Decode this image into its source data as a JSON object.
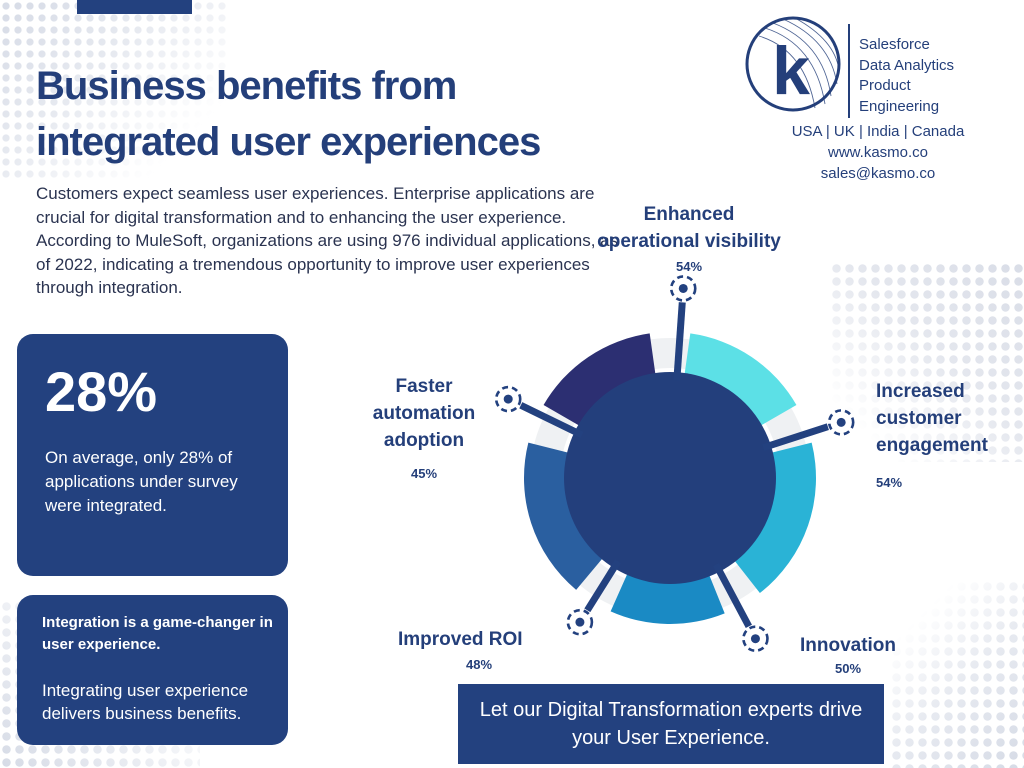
{
  "header": {
    "title_line1": "Business benefits from",
    "title_line2": "integrated user experiences",
    "intro": "Customers expect seamless user experiences. Enterprise applications are crucial for digital transformation and to enhancing the user experience. According to MuleSoft, organizations are using 976 individual applications, as of 2022, indicating a tremendous opportunity to improve user experiences through integration."
  },
  "brand": {
    "logo_letter": "k",
    "services": [
      "Salesforce",
      "Data Analytics",
      "Product",
      "Engineering"
    ],
    "regions": "USA | UK | India | Canada",
    "website": "www.kasmo.co",
    "email": "sales@kasmo.co"
  },
  "stat_card": {
    "value": "28%",
    "description": "On average, only 28% of applications under survey were integrated."
  },
  "insight_card": {
    "headline": "Integration is a game-changer in user experience.",
    "body": "Integrating user experience delivers business benefits."
  },
  "benefits": [
    {
      "name": "Enhanced operational visibility",
      "line1": "Enhanced",
      "line2": "operational visibility",
      "percent": "54%",
      "color": "#5ce0e6"
    },
    {
      "name": "Increased customer engagement",
      "line1": "Increased",
      "line2": "customer",
      "line3": "engagement",
      "percent": "54%",
      "color": "#2ab3d6"
    },
    {
      "name": "Innovation",
      "line1": "Innovation",
      "percent": "50%",
      "color": "#1a8ac4"
    },
    {
      "name": "Improved ROI",
      "line1": "Improved ROI",
      "percent": "48%",
      "color": "#2a5fa0"
    },
    {
      "name": "Faster automation adoption",
      "line1": "Faster",
      "line2": "automation",
      "line3": "adoption",
      "percent": "45%",
      "color": "#2c2f72"
    }
  ],
  "colors": {
    "navy": "#23417f",
    "center": "#233f7c",
    "gap": "#eff1f3",
    "text": "#243f7a"
  },
  "cta": {
    "text": "Let our Digital Transformation experts drive your User Experience."
  }
}
